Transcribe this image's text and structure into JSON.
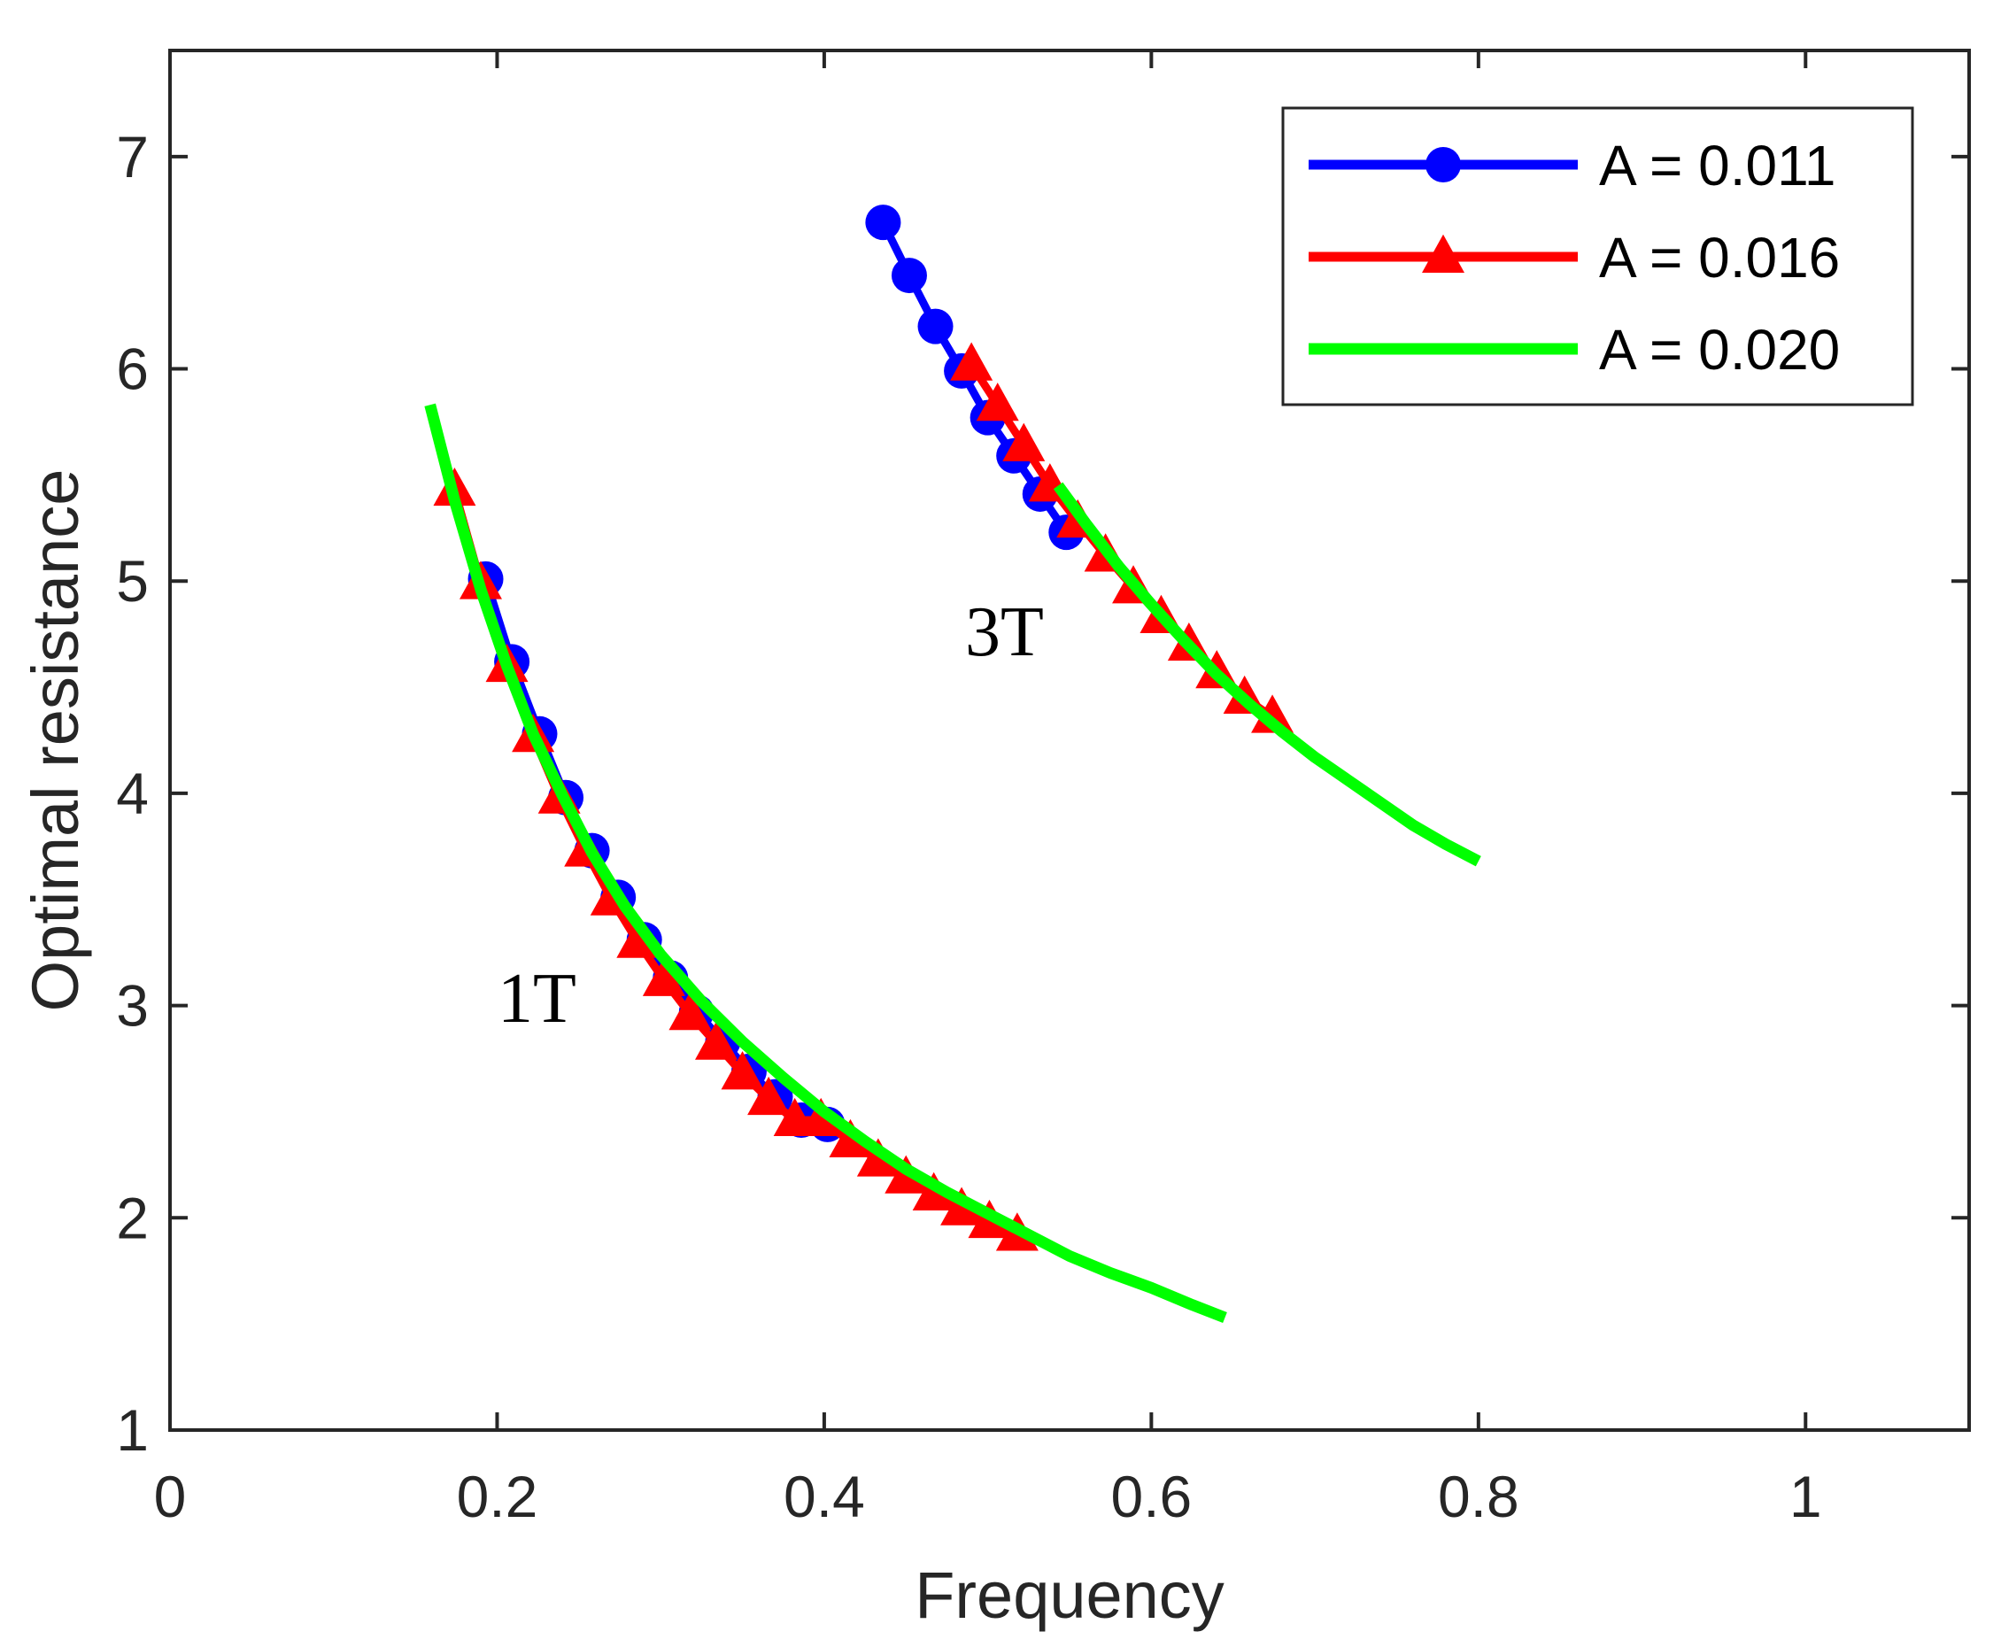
{
  "chart_data": {
    "type": "line",
    "title": "",
    "xlabel": "Frequency",
    "ylabel": "Optimal resistance",
    "xlim": [
      0,
      1.1
    ],
    "ylim": [
      1,
      7.5
    ],
    "xticks": [
      0,
      0.2,
      0.4,
      0.6,
      0.8,
      1
    ],
    "xtick_labels": [
      "0",
      "0.2",
      "0.4",
      "0.6",
      "0.8",
      "1"
    ],
    "yticks": [
      1,
      2,
      3,
      4,
      5,
      6,
      7
    ],
    "ytick_labels": [
      "1",
      "2",
      "3",
      "4",
      "5",
      "6",
      "7"
    ],
    "grid": false,
    "legend_position": "top-right",
    "series": [
      {
        "name": "A = 0.011",
        "color": "#0000ff",
        "marker": "circle",
        "segments": [
          [
            [
              0.193,
              5.01
            ],
            [
              0.209,
              4.62
            ],
            [
              0.226,
              4.28
            ],
            [
              0.242,
              3.98
            ],
            [
              0.258,
              3.73
            ],
            [
              0.274,
              3.51
            ],
            [
              0.29,
              3.31
            ],
            [
              0.306,
              3.13
            ],
            [
              0.322,
              2.97
            ],
            [
              0.338,
              2.83
            ],
            [
              0.354,
              2.69
            ],
            [
              0.37,
              2.57
            ],
            [
              0.386,
              2.46
            ],
            [
              0.402,
              2.44
            ]
          ],
          [
            [
              0.436,
              6.69
            ],
            [
              0.452,
              6.44
            ],
            [
              0.468,
              6.2
            ],
            [
              0.484,
              5.99
            ],
            [
              0.5,
              5.77
            ],
            [
              0.516,
              5.59
            ],
            [
              0.532,
              5.41
            ],
            [
              0.548,
              5.23
            ]
          ]
        ]
      },
      {
        "name": "A = 0.016",
        "color": "#ff0000",
        "marker": "triangle",
        "segments": [
          [
            [
              0.174,
              5.43
            ],
            [
              0.19,
              4.99
            ],
            [
              0.206,
              4.6
            ],
            [
              0.222,
              4.27
            ],
            [
              0.238,
              3.98
            ],
            [
              0.254,
              3.73
            ],
            [
              0.27,
              3.5
            ],
            [
              0.286,
              3.3
            ],
            [
              0.302,
              3.12
            ],
            [
              0.318,
              2.96
            ],
            [
              0.334,
              2.82
            ],
            [
              0.35,
              2.68
            ],
            [
              0.366,
              2.56
            ],
            [
              0.382,
              2.46
            ],
            [
              0.398,
              2.46
            ],
            [
              0.416,
              2.36
            ],
            [
              0.433,
              2.27
            ],
            [
              0.45,
              2.19
            ],
            [
              0.467,
              2.11
            ],
            [
              0.484,
              2.04
            ],
            [
              0.501,
              1.98
            ],
            [
              0.518,
              1.92
            ]
          ],
          [
            [
              0.49,
              6.02
            ],
            [
              0.506,
              5.83
            ],
            [
              0.522,
              5.64
            ],
            [
              0.538,
              5.45
            ],
            [
              0.555,
              5.28
            ],
            [
              0.572,
              5.12
            ],
            [
              0.589,
              4.97
            ],
            [
              0.606,
              4.83
            ],
            [
              0.623,
              4.7
            ],
            [
              0.64,
              4.57
            ],
            [
              0.657,
              4.45
            ],
            [
              0.674,
              4.36
            ]
          ]
        ]
      },
      {
        "name": "A = 0.020",
        "color": "#00ff00",
        "marker": "none",
        "segments": [
          [
            [
              0.159,
              5.83
            ],
            [
              0.174,
              5.38
            ],
            [
              0.19,
              4.96
            ],
            [
              0.206,
              4.6
            ],
            [
              0.222,
              4.28
            ],
            [
              0.24,
              3.99
            ],
            [
              0.258,
              3.72
            ],
            [
              0.278,
              3.47
            ],
            [
              0.3,
              3.24
            ],
            [
              0.325,
              3.02
            ],
            [
              0.35,
              2.83
            ],
            [
              0.375,
              2.66
            ],
            [
              0.4,
              2.5
            ],
            [
              0.425,
              2.36
            ],
            [
              0.45,
              2.23
            ],
            [
              0.475,
              2.12
            ],
            [
              0.5,
              2.02
            ],
            [
              0.525,
              1.92
            ],
            [
              0.55,
              1.82
            ],
            [
              0.575,
              1.74
            ],
            [
              0.6,
              1.67
            ],
            [
              0.625,
              1.59
            ],
            [
              0.645,
              1.53
            ]
          ],
          [
            [
              0.543,
              5.45
            ],
            [
              0.56,
              5.27
            ],
            [
              0.58,
              5.07
            ],
            [
              0.6,
              4.89
            ],
            [
              0.62,
              4.72
            ],
            [
              0.64,
              4.56
            ],
            [
              0.66,
              4.42
            ],
            [
              0.68,
              4.29
            ],
            [
              0.7,
              4.17
            ],
            [
              0.73,
              4.01
            ],
            [
              0.76,
              3.85
            ],
            [
              0.78,
              3.76
            ],
            [
              0.8,
              3.68
            ]
          ]
        ]
      }
    ],
    "annotations": [
      {
        "text": "1T",
        "x": 0.204,
        "y": 3.05
      },
      {
        "text": "3T",
        "x": 0.51,
        "y": 4.72
      }
    ]
  }
}
